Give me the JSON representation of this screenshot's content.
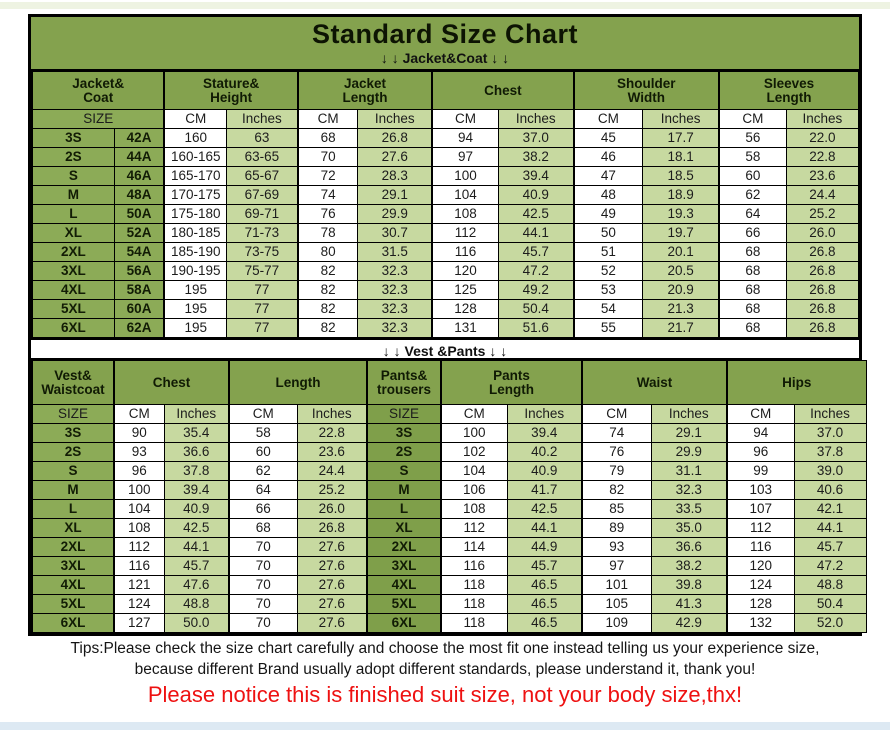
{
  "page": {
    "title": "Standard Size Chart",
    "banner_jacket": "↓ ↓  Jacket&Coat ↓ ↓",
    "banner_vest": "↓ ↓  Vest &Pants ↓ ↓"
  },
  "colors": {
    "header_green": "#84a24e",
    "size_green": "#8cab57",
    "pants_size_green": "#7f9f4a",
    "cell_light_green": "#c7d9a0",
    "cell_white": "#ffffff",
    "border_black": "#000000",
    "notice_red": "#ee1111"
  },
  "jacket_table": {
    "groups": [
      [
        "Jacket&",
        "Coat"
      ],
      [
        "Stature&",
        "Height"
      ],
      [
        "Jacket",
        "Length"
      ],
      [
        "Chest"
      ],
      [
        "Shoulder",
        "Width"
      ],
      [
        "Sleeves",
        "Length"
      ]
    ],
    "subheader": [
      "SIZE",
      "CM",
      "Inches",
      "CM",
      "Inches",
      "CM",
      "Inches",
      "CM",
      "Inches",
      "CM",
      "Inches"
    ],
    "rows": [
      [
        "3S",
        "42A",
        "160",
        "63",
        "68",
        "26.8",
        "94",
        "37.0",
        "45",
        "17.7",
        "56",
        "22.0"
      ],
      [
        "2S",
        "44A",
        "160-165",
        "63-65",
        "70",
        "27.6",
        "97",
        "38.2",
        "46",
        "18.1",
        "58",
        "22.8"
      ],
      [
        "S",
        "46A",
        "165-170",
        "65-67",
        "72",
        "28.3",
        "100",
        "39.4",
        "47",
        "18.5",
        "60",
        "23.6"
      ],
      [
        "M",
        "48A",
        "170-175",
        "67-69",
        "74",
        "29.1",
        "104",
        "40.9",
        "48",
        "18.9",
        "62",
        "24.4"
      ],
      [
        "L",
        "50A",
        "175-180",
        "69-71",
        "76",
        "29.9",
        "108",
        "42.5",
        "49",
        "19.3",
        "64",
        "25.2"
      ],
      [
        "XL",
        "52A",
        "180-185",
        "71-73",
        "78",
        "30.7",
        "112",
        "44.1",
        "50",
        "19.7",
        "66",
        "26.0"
      ],
      [
        "2XL",
        "54A",
        "185-190",
        "73-75",
        "80",
        "31.5",
        "116",
        "45.7",
        "51",
        "20.1",
        "68",
        "26.8"
      ],
      [
        "3XL",
        "56A",
        "190-195",
        "75-77",
        "82",
        "32.3",
        "120",
        "47.2",
        "52",
        "20.5",
        "68",
        "26.8"
      ],
      [
        "4XL",
        "58A",
        "195",
        "77",
        "82",
        "32.3",
        "125",
        "49.2",
        "53",
        "20.9",
        "68",
        "26.8"
      ],
      [
        "5XL",
        "60A",
        "195",
        "77",
        "82",
        "32.3",
        "128",
        "50.4",
        "54",
        "21.3",
        "68",
        "26.8"
      ],
      [
        "6XL",
        "62A",
        "195",
        "77",
        "82",
        "32.3",
        "131",
        "51.6",
        "55",
        "21.7",
        "68",
        "26.8"
      ]
    ]
  },
  "vest_table": {
    "groups": [
      [
        "Vest&",
        "Waistcoat"
      ],
      [
        "Chest"
      ],
      [
        "Length"
      ],
      [
        "Pants&",
        "trousers"
      ],
      [
        "Pants",
        "Length"
      ],
      [
        "Waist"
      ],
      [
        "Hips"
      ]
    ],
    "subheader": [
      "SIZE",
      "CM",
      "Inches",
      "CM",
      "Inches",
      "SIZE",
      "CM",
      "Inches",
      "CM",
      "Inches",
      "CM",
      "Inches"
    ],
    "rows": [
      [
        "3S",
        "90",
        "35.4",
        "58",
        "22.8",
        "3S",
        "100",
        "39.4",
        "74",
        "29.1",
        "94",
        "37.0"
      ],
      [
        "2S",
        "93",
        "36.6",
        "60",
        "23.6",
        "2S",
        "102",
        "40.2",
        "76",
        "29.9",
        "96",
        "37.8"
      ],
      [
        "S",
        "96",
        "37.8",
        "62",
        "24.4",
        "S",
        "104",
        "40.9",
        "79",
        "31.1",
        "99",
        "39.0"
      ],
      [
        "M",
        "100",
        "39.4",
        "64",
        "25.2",
        "M",
        "106",
        "41.7",
        "82",
        "32.3",
        "103",
        "40.6"
      ],
      [
        "L",
        "104",
        "40.9",
        "66",
        "26.0",
        "L",
        "108",
        "42.5",
        "85",
        "33.5",
        "107",
        "42.1"
      ],
      [
        "XL",
        "108",
        "42.5",
        "68",
        "26.8",
        "XL",
        "112",
        "44.1",
        "89",
        "35.0",
        "112",
        "44.1"
      ],
      [
        "2XL",
        "112",
        "44.1",
        "70",
        "27.6",
        "2XL",
        "114",
        "44.9",
        "93",
        "36.6",
        "116",
        "45.7"
      ],
      [
        "3XL",
        "116",
        "45.7",
        "70",
        "27.6",
        "3XL",
        "116",
        "45.7",
        "97",
        "38.2",
        "120",
        "47.2"
      ],
      [
        "4XL",
        "121",
        "47.6",
        "70",
        "27.6",
        "4XL",
        "118",
        "46.5",
        "101",
        "39.8",
        "124",
        "48.8"
      ],
      [
        "5XL",
        "124",
        "48.8",
        "70",
        "27.6",
        "5XL",
        "118",
        "46.5",
        "105",
        "41.3",
        "128",
        "50.4"
      ],
      [
        "6XL",
        "127",
        "50.0",
        "70",
        "27.6",
        "6XL",
        "118",
        "46.5",
        "109",
        "42.9",
        "132",
        "52.0"
      ]
    ]
  },
  "footer": {
    "tips_line1": "Tips:Please check the size chart carefully and choose the most fit one instead telling us your experience size,",
    "tips_line2": "because different Brand usually adopt different standards, please understand it, thank you!",
    "notice": "Please notice this is finished suit size, not your body size,thx!"
  }
}
